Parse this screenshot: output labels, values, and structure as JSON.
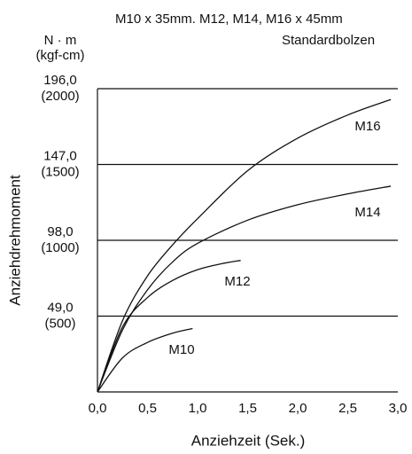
{
  "chart_data": {
    "type": "line",
    "title": "M10 x 35mm. M12, M14, M16 x 45mm",
    "subtitle": "Standardbolzen",
    "y_unit": "N · m",
    "y_unit_secondary": "(kgf-cm)",
    "x_label": "Anziehzeit (Sek.)",
    "y_label": "Anziehdrehmoment",
    "xlim": [
      0,
      3
    ],
    "ylim": [
      0,
      196
    ],
    "xticks": [
      {
        "value": 0,
        "label": "0,0"
      },
      {
        "value": 0.5,
        "label": "0,5"
      },
      {
        "value": 1,
        "label": "1,0"
      },
      {
        "value": 1.5,
        "label": "1,5"
      },
      {
        "value": 2,
        "label": "2,0"
      },
      {
        "value": 2.5,
        "label": "2,5"
      },
      {
        "value": 3,
        "label": "3,0"
      }
    ],
    "yticks": [
      {
        "value": 49,
        "label": "49,0"
      },
      {
        "value": 98,
        "label": "98,0"
      },
      {
        "value": 147,
        "label": "147,0"
      },
      {
        "value": 196,
        "label": "196,0"
      }
    ],
    "yticks_secondary": [
      {
        "value": 49,
        "label": "(500)"
      },
      {
        "value": 98,
        "label": "(1000)"
      },
      {
        "value": 147,
        "label": "(1500)"
      },
      {
        "value": 196,
        "label": "(2000)"
      }
    ],
    "grid": true,
    "series": [
      {
        "name": "M16",
        "color": "#111111",
        "x": [
          0,
          0.25,
          0.5,
          0.75,
          1.0,
          1.5,
          2.0,
          2.5,
          2.93
        ],
        "values": [
          0,
          46,
          75,
          95,
          112,
          143,
          164,
          179,
          189
        ]
      },
      {
        "name": "M14",
        "color": "#111111",
        "x": [
          0,
          0.25,
          0.5,
          0.75,
          1.0,
          1.5,
          2.0,
          2.5,
          2.93
        ],
        "values": [
          0,
          40,
          66,
          84,
          96,
          111,
          121,
          128,
          133
        ]
      },
      {
        "name": "M12",
        "color": "#111111",
        "x": [
          0,
          0.25,
          0.5,
          0.75,
          1.0,
          1.25,
          1.43
        ],
        "values": [
          0,
          42,
          61,
          72,
          79,
          83,
          85
        ]
      },
      {
        "name": "M10",
        "color": "#111111",
        "x": [
          0,
          0.25,
          0.5,
          0.75,
          0.95
        ],
        "values": [
          0,
          22,
          32,
          38,
          41
        ]
      }
    ]
  }
}
